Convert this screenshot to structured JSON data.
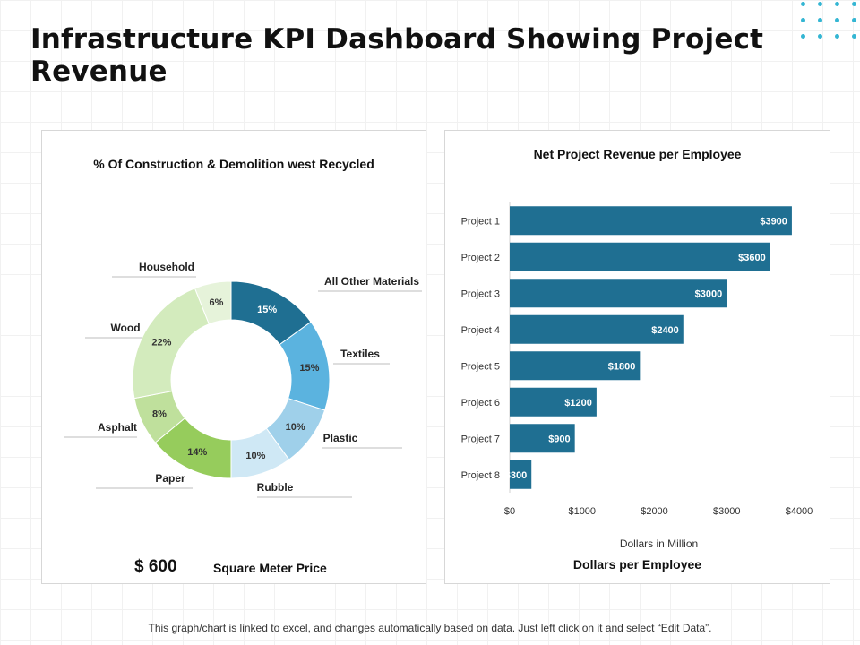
{
  "title": "Infrastructure KPI Dashboard Showing Project Revenue",
  "colors": {
    "accent_dots": "#34b6d3",
    "bar": "#1f6f92"
  },
  "left_panel": {
    "title": "% Of Construction & Demolition west Recycled",
    "price_value": "$ 600",
    "price_label": "Square Meter Price"
  },
  "right_panel": {
    "title": "Net Project Revenue per Employee",
    "footer": "Dollars per Employee"
  },
  "footer_note": "This graph/chart is linked to excel, and changes automatically based on data. Just left click on it and select “Edit Data”.",
  "chart_data": [
    {
      "type": "pie",
      "donut": true,
      "title": "% Of Construction & Demolition west Recycled",
      "slices": [
        {
          "label": "All Other Materials",
          "value": 15,
          "value_label": "15%",
          "color": "#1f6f92"
        },
        {
          "label": "Textiles",
          "value": 15,
          "value_label": "15%",
          "color": "#5bb3df"
        },
        {
          "label": "Plastic",
          "value": 10,
          "value_label": "10%",
          "color": "#9fd0ea"
        },
        {
          "label": "Rubble",
          "value": 10,
          "value_label": "10%",
          "color": "#cfe8f5"
        },
        {
          "label": "Paper",
          "value": 14,
          "value_label": "14%",
          "color": "#96cc5c"
        },
        {
          "label": "Asphalt",
          "value": 8,
          "value_label": "8%",
          "color": "#bfe09c"
        },
        {
          "label": "Wood",
          "value": 22,
          "value_label": "22%",
          "color": "#d3ebbd"
        },
        {
          "label": "Household",
          "value": 6,
          "value_label": "6%",
          "color": "#e6f3da"
        }
      ]
    },
    {
      "type": "bar",
      "orientation": "horizontal",
      "title": "Net Project Revenue per Employee",
      "categories": [
        "Project 1",
        "Project 2",
        "Project 3",
        "Project 4",
        "Project 5",
        "Project 6",
        "Project 7",
        "Project 8"
      ],
      "values": [
        3900,
        3600,
        3000,
        2400,
        1800,
        1200,
        900,
        300
      ],
      "value_labels": [
        "$3900",
        "$3600",
        "$3000",
        "$2400",
        "$1800",
        "$1200",
        "$900",
        "$300"
      ],
      "xlim": [
        0,
        4000
      ],
      "x_ticks": [
        0,
        1000,
        2000,
        3000,
        4000
      ],
      "x_tick_labels": [
        "$0",
        "$1000",
        "$2000",
        "$3000",
        "$4000"
      ],
      "xlabel": "Dollars in Million",
      "ylabel": ""
    }
  ]
}
